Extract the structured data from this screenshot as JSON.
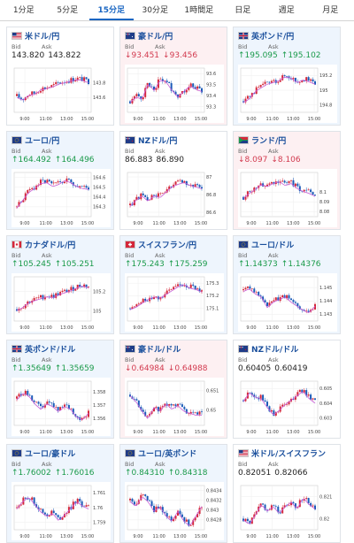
{
  "tabs": [
    {
      "label": "1分足",
      "active": false
    },
    {
      "label": "5分足",
      "active": false
    },
    {
      "label": "15分足",
      "active": true
    },
    {
      "label": "30分足",
      "active": false
    },
    {
      "label": "1時間足",
      "active": false
    },
    {
      "label": "日足",
      "active": false
    },
    {
      "label": "週足",
      "active": false
    },
    {
      "label": "月足",
      "active": false
    }
  ],
  "colors": {
    "up_candle": "#d4283a",
    "down_candle": "#1b5bb8",
    "ma_line": "#c65bd6",
    "up_text": "#1a9a4a",
    "down_text": "#d23a4f"
  },
  "labels": {
    "bid": "Bid",
    "ask": "Ask"
  },
  "cards": [
    {
      "pair": "米ドル/円",
      "flag": "us-flag-icon",
      "dir": "neutral",
      "bid": "143.820",
      "ask": "143.822",
      "chart_data": {
        "type": "candlestick",
        "x_ticks": [
          "9:00",
          "11:00",
          "13:00",
          "15:00"
        ],
        "y_ticks": [
          "143.8",
          "143.6"
        ],
        "ylim": [
          143.4,
          144.0
        ],
        "trend": [
          143.62,
          143.58,
          143.65,
          143.66,
          143.72,
          143.74,
          143.76,
          143.8,
          143.82,
          143.84,
          143.86,
          143.85,
          143.82
        ]
      }
    },
    {
      "pair": "豪ドル/円",
      "flag": "au-flag-icon",
      "dir": "down",
      "bid": "93.451",
      "ask": "93.456",
      "chart_data": {
        "type": "candlestick",
        "x_ticks": [
          "9:00",
          "11:00",
          "13:00",
          "15:00"
        ],
        "y_ticks": [
          "93.6",
          "93.5",
          "93.4",
          "93.3"
        ],
        "ylim": [
          93.25,
          93.65
        ],
        "trend": [
          93.35,
          93.4,
          93.38,
          93.52,
          93.46,
          93.55,
          93.54,
          93.46,
          93.4,
          93.45,
          93.5,
          93.47,
          93.45
        ]
      }
    },
    {
      "pair": "英ポンド/円",
      "flag": "gb-flag-icon",
      "dir": "up",
      "bid": "195.095",
      "ask": "195.102",
      "chart_data": {
        "type": "candlestick",
        "x_ticks": [
          "9:00",
          "11:00",
          "13:00",
          "15:00"
        ],
        "y_ticks": [
          "195.2",
          "195",
          "194.8"
        ],
        "ylim": [
          194.7,
          195.3
        ],
        "trend": [
          194.85,
          194.9,
          195.0,
          195.05,
          195.1,
          195.12,
          195.15,
          195.2,
          195.18,
          195.12,
          195.16,
          195.13,
          195.1
        ]
      }
    },
    {
      "pair": "ユーロ/円",
      "flag": "eu-flag-icon",
      "dir": "up",
      "bid": "164.492",
      "ask": "164.496",
      "chart_data": {
        "type": "candlestick",
        "x_ticks": [
          "9:00",
          "11:00",
          "13:00",
          "15:00"
        ],
        "y_ticks": [
          "164.6",
          "164.5",
          "164.4",
          "164.3"
        ],
        "ylim": [
          164.2,
          164.65
        ],
        "trend": [
          164.3,
          164.38,
          164.46,
          164.5,
          164.55,
          164.56,
          164.52,
          164.54,
          164.58,
          164.56,
          164.52,
          164.5,
          164.49
        ]
      }
    },
    {
      "pair": "NZドル/円",
      "flag": "nz-flag-icon",
      "dir": "neutral",
      "bid": "86.883",
      "ask": "86.890",
      "chart_data": {
        "type": "candlestick",
        "x_ticks": [
          "9:00",
          "11:00",
          "13:00",
          "15:00"
        ],
        "y_ticks": [
          "87",
          "86.8",
          "86.6"
        ],
        "ylim": [
          86.55,
          87.05
        ],
        "trend": [
          86.68,
          86.75,
          86.8,
          86.74,
          86.8,
          86.78,
          86.84,
          86.9,
          86.93,
          86.95,
          86.92,
          86.9,
          86.88
        ]
      }
    },
    {
      "pair": "ランド/円",
      "flag": "za-flag-icon",
      "dir": "down",
      "bid": "8.097",
      "ask": "8.106",
      "chart_data": {
        "type": "candlestick",
        "x_ticks": [
          "9:00",
          "11:00",
          "13:00",
          "15:00"
        ],
        "y_ticks": [
          "8.1",
          "8.09",
          "8.08"
        ],
        "ylim": [
          8.075,
          8.12
        ],
        "trend": [
          8.095,
          8.1,
          8.104,
          8.109,
          8.107,
          8.11,
          8.112,
          8.108,
          8.11,
          8.105,
          8.102,
          8.1,
          8.097
        ]
      }
    },
    {
      "pair": "カナダドル/円",
      "flag": "ca-flag-icon",
      "dir": "up",
      "bid": "105.245",
      "ask": "105.251",
      "chart_data": {
        "type": "candlestick",
        "x_ticks": [
          "9:00",
          "11:00",
          "13:00",
          "15:00"
        ],
        "y_ticks": [
          "105.2",
          "105"
        ],
        "ylim": [
          104.9,
          105.35
        ],
        "trend": [
          105.02,
          105.05,
          105.1,
          105.12,
          105.14,
          105.16,
          105.15,
          105.18,
          105.2,
          105.22,
          105.25,
          105.27,
          105.25
        ]
      }
    },
    {
      "pair": "スイスフラン/円",
      "flag": "ch-flag-icon",
      "dir": "up",
      "bid": "175.243",
      "ask": "175.259",
      "chart_data": {
        "type": "candlestick",
        "x_ticks": [
          "9:00",
          "11:00",
          "13:00",
          "15:00"
        ],
        "y_ticks": [
          "175.3",
          "175.2",
          "175.1"
        ],
        "ylim": [
          175.0,
          175.35
        ],
        "trend": [
          175.1,
          175.12,
          175.15,
          175.18,
          175.2,
          175.19,
          175.22,
          175.25,
          175.28,
          175.3,
          175.27,
          175.26,
          175.24
        ]
      }
    },
    {
      "pair": "ユーロ/ドル",
      "flag": "eu-flag-icon",
      "dir": "up",
      "bid": "1.14373",
      "ask": "1.14376",
      "chart_data": {
        "type": "candlestick",
        "x_ticks": [
          "9:00",
          "11:00",
          "13:00",
          "15:00"
        ],
        "y_ticks": [
          "1.145",
          "1.144",
          "1.143"
        ],
        "ylim": [
          1.1425,
          1.1458
        ],
        "trend": [
          1.1448,
          1.145,
          1.1446,
          1.1444,
          1.1436,
          1.144,
          1.1442,
          1.1444,
          1.144,
          1.1437,
          1.1434,
          1.1432,
          1.1437
        ]
      }
    },
    {
      "pair": "英ポンド/ドル",
      "flag": "gb-flag-icon",
      "dir": "up",
      "bid": "1.35649",
      "ask": "1.35659",
      "chart_data": {
        "type": "candlestick",
        "x_ticks": [
          "9:00",
          "11:00",
          "13:00",
          "15:00"
        ],
        "y_ticks": [
          "1.358",
          "1.357",
          "1.356"
        ],
        "ylim": [
          1.3555,
          1.3588
        ],
        "trend": [
          1.3575,
          1.358,
          1.3578,
          1.3572,
          1.3568,
          1.3572,
          1.357,
          1.3566,
          1.357,
          1.3568,
          1.3562,
          1.356,
          1.3565
        ]
      }
    },
    {
      "pair": "豪ドル/ドル",
      "flag": "au-flag-icon",
      "dir": "down",
      "bid": "0.64984",
      "ask": "0.64988",
      "chart_data": {
        "type": "candlestick",
        "x_ticks": [
          "9:00",
          "11:00",
          "13:00",
          "15:00"
        ],
        "y_ticks": [
          "0.651",
          "0.65"
        ],
        "ylim": [
          0.6492,
          0.6515
        ],
        "trend": [
          0.6508,
          0.6505,
          0.65,
          0.6496,
          0.6502,
          0.65,
          0.6504,
          0.6501,
          0.6503,
          0.65,
          0.6499,
          0.6498,
          0.6498
        ]
      }
    },
    {
      "pair": "NZドル/ドル",
      "flag": "nz-flag-icon",
      "dir": "neutral",
      "bid": "0.60405",
      "ask": "0.60419",
      "chart_data": {
        "type": "candlestick",
        "x_ticks": [
          "9:00",
          "11:00",
          "13:00",
          "15:00"
        ],
        "y_ticks": [
          "0.605",
          "0.604",
          "0.603"
        ],
        "ylim": [
          0.6025,
          0.6055
        ],
        "trend": [
          0.6042,
          0.6048,
          0.6045,
          0.6044,
          0.6038,
          0.6033,
          0.6036,
          0.604,
          0.6043,
          0.6046,
          0.6049,
          0.6044,
          0.6041
        ]
      }
    },
    {
      "pair": "ユーロ/豪ドル",
      "flag": "eu-flag-icon",
      "dir": "up",
      "bid": "1.76002",
      "ask": "1.76016",
      "chart_data": {
        "type": "candlestick",
        "x_ticks": [
          "9:00",
          "11:00",
          "13:00",
          "15:00"
        ],
        "y_ticks": [
          "1.761",
          "1.76",
          "1.759"
        ],
        "ylim": [
          1.7585,
          1.7615
        ],
        "trend": [
          1.76,
          1.7605,
          1.7608,
          1.7603,
          1.7598,
          1.7595,
          1.7597,
          1.7592,
          1.7596,
          1.76,
          1.7605,
          1.7602,
          1.76
        ]
      }
    },
    {
      "pair": "ユーロ/英ポンド",
      "flag": "eu-flag-icon",
      "dir": "up",
      "bid": "0.84310",
      "ask": "0.84318",
      "chart_data": {
        "type": "candlestick",
        "x_ticks": [
          "9:00",
          "11:00",
          "13:00",
          "15:00"
        ],
        "y_ticks": [
          "0.8434",
          "0.8432",
          "0.843",
          "0.8428"
        ],
        "ylim": [
          0.8426,
          0.8435
        ],
        "trend": [
          0.8432,
          0.8431,
          0.8433,
          0.8432,
          0.843,
          0.8431,
          0.8429,
          0.8428,
          0.843,
          0.8428,
          0.8427,
          0.8429,
          0.8431
        ]
      }
    },
    {
      "pair": "米ドル/スイスフラン",
      "flag": "us-flag-icon",
      "dir": "neutral",
      "bid": "0.82051",
      "ask": "0.82066",
      "chart_data": {
        "type": "candlestick",
        "x_ticks": [
          "9:00",
          "11:00",
          "13:00",
          "15:00"
        ],
        "y_ticks": [
          "0.821",
          "0.82"
        ],
        "ylim": [
          0.8195,
          0.8215
        ],
        "trend": [
          0.82,
          0.8198,
          0.8202,
          0.8207,
          0.8204,
          0.8206,
          0.8203,
          0.8206,
          0.8208,
          0.8205,
          0.821,
          0.8207,
          0.8205
        ]
      }
    }
  ]
}
